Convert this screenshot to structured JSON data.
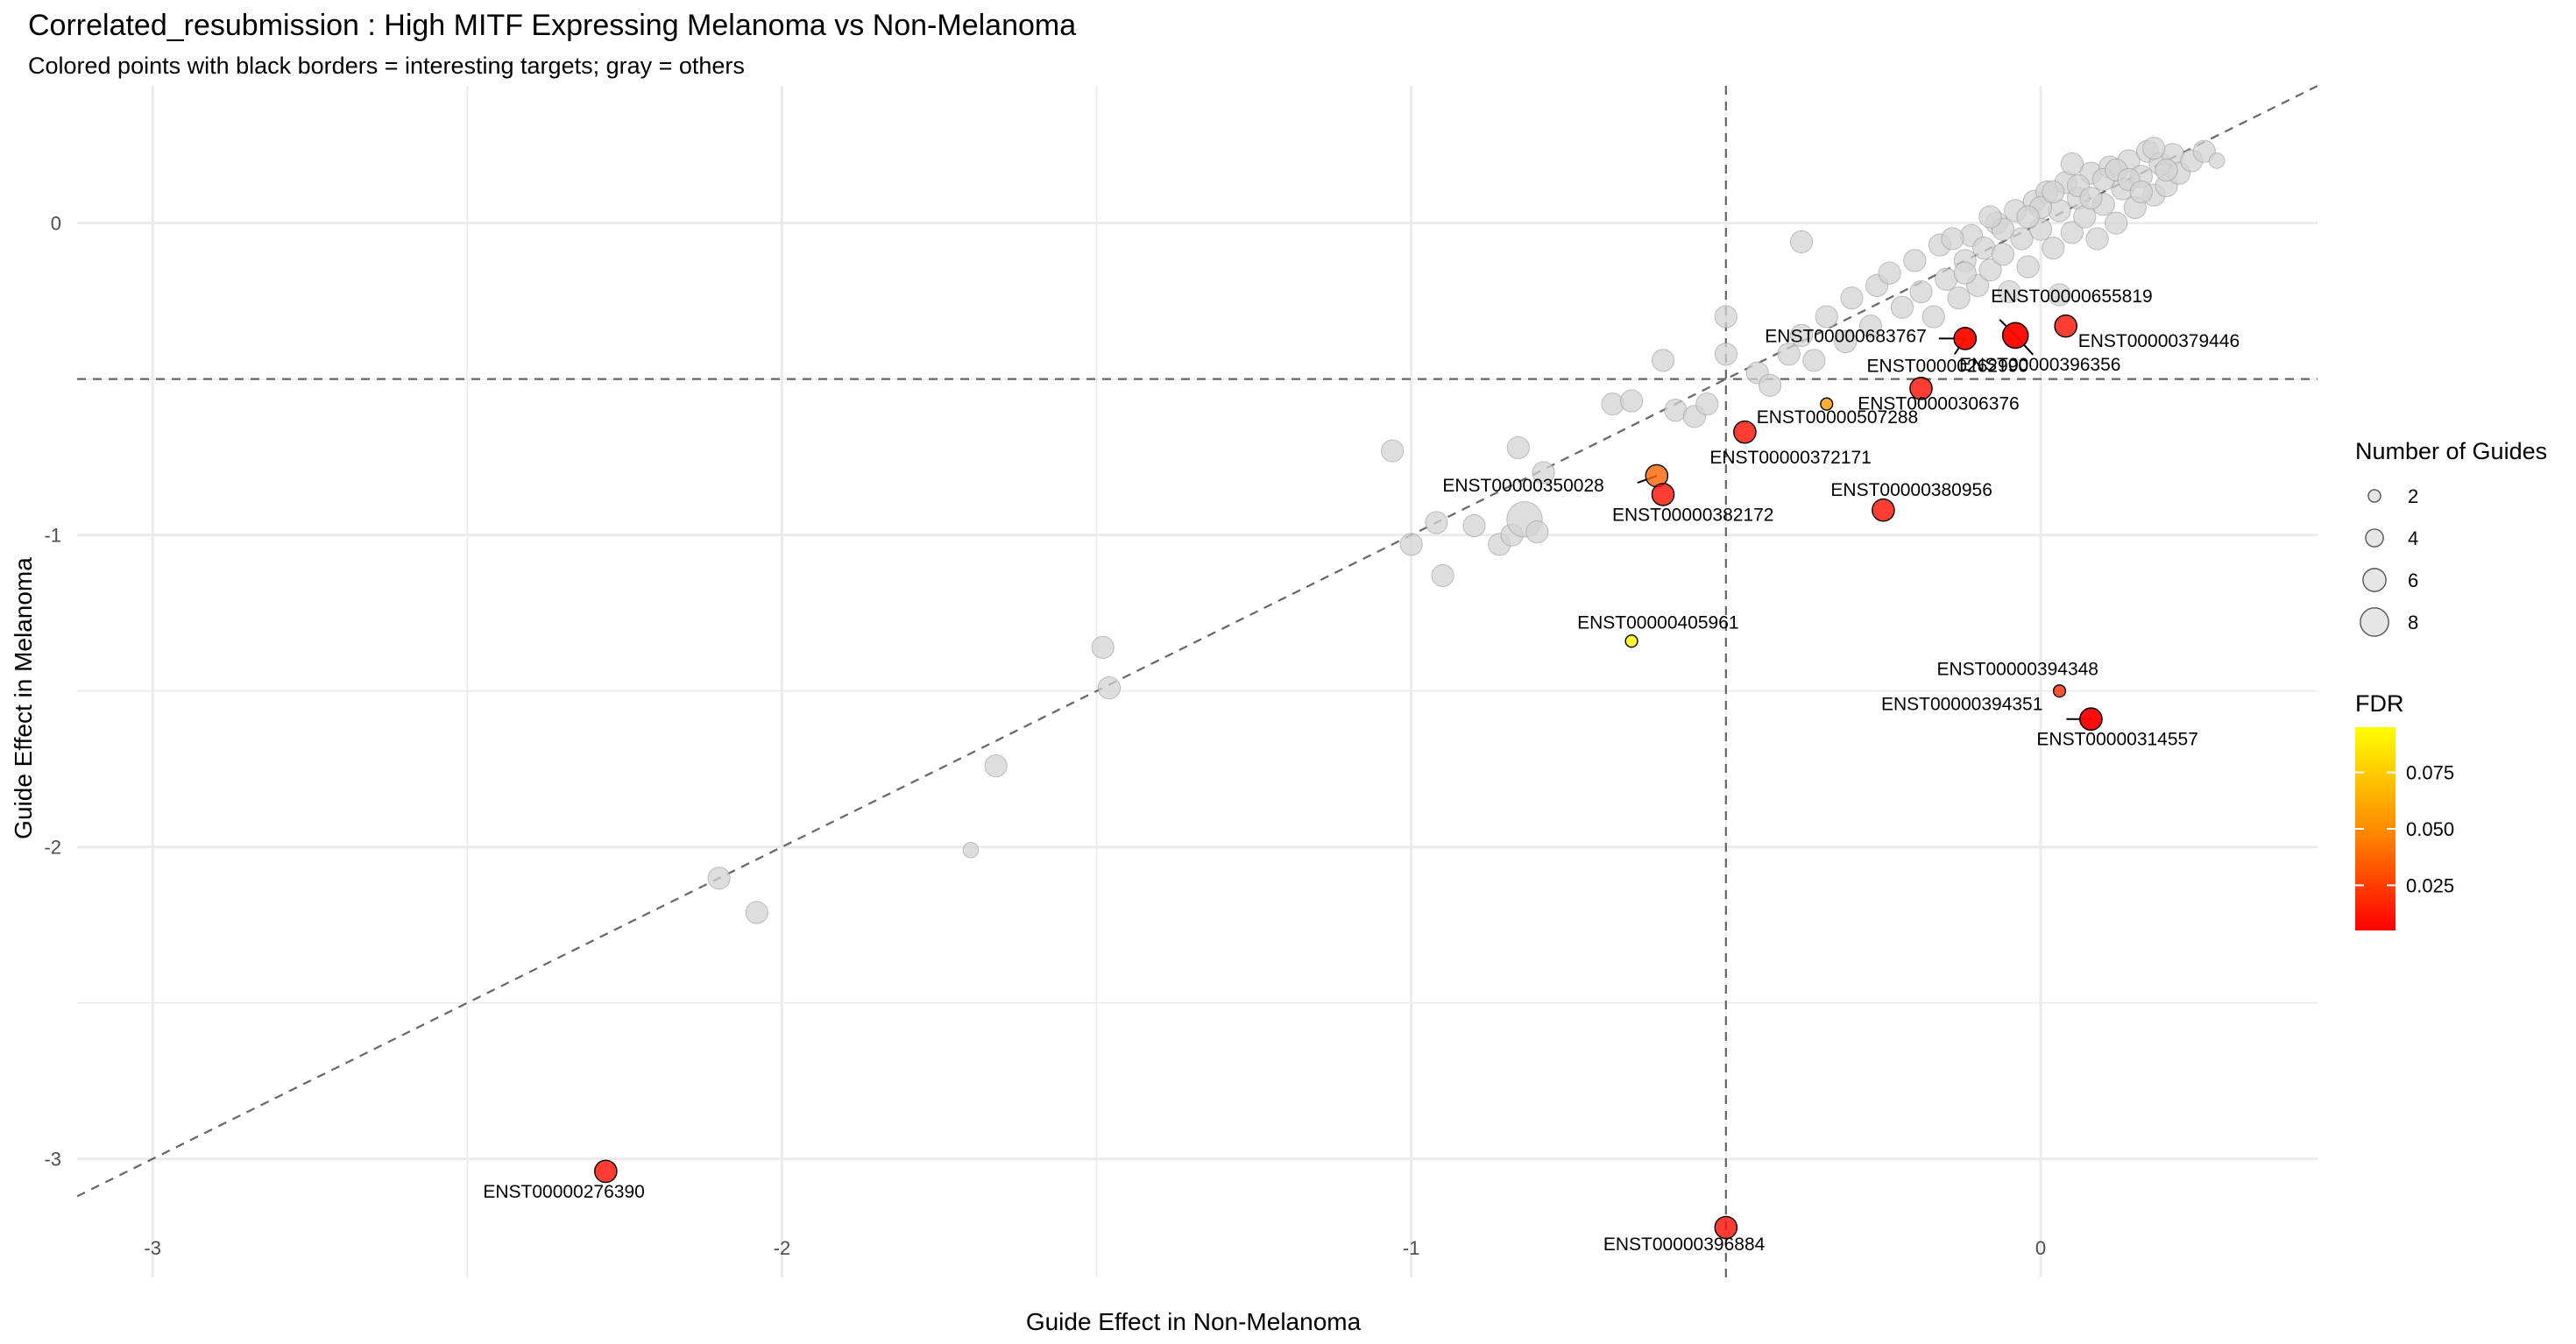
{
  "chart_data": {
    "type": "scatter",
    "title": "Correlated_resubmission : High MITF Expressing Melanoma vs Non-Melanoma",
    "subtitle": "Colored points with black borders = interesting targets; gray = others",
    "xlabel": "Guide Effect in Non-Melanoma",
    "ylabel": "Guide Effect in Melanoma",
    "xlim": [
      -3.12,
      0.44
    ],
    "ylim": [
      -3.38,
      0.44
    ],
    "x_ticks": [
      -3,
      -2,
      -1,
      0
    ],
    "y_ticks": [
      -3,
      -2,
      -1,
      0
    ],
    "grid": true,
    "reference_lines": {
      "diagonal": "y = x",
      "vertical_x": -0.5,
      "horizontal_y": -0.5
    },
    "legend_position": "right",
    "size_legend": {
      "title": "Number of Guides",
      "values": [
        2,
        4,
        6,
        8
      ],
      "labels": [
        "2",
        "4",
        "6",
        "8"
      ]
    },
    "color_legend": {
      "title": "FDR",
      "low_color": "#ff0000",
      "high_color": "#ffff00",
      "range": [
        0.005,
        0.095
      ],
      "ticks": [
        0.025,
        0.05,
        0.075
      ],
      "tick_labels": [
        "0.025",
        "0.050",
        "0.075"
      ]
    },
    "colors": {
      "other_fill": "#d3d3d3",
      "other_stroke": "#9a9a9a",
      "interesting_stroke": "#000000",
      "reference_line": "#666666",
      "grid": "#ebebeb"
    },
    "interesting_points": [
      {
        "label": "ENST00000655819",
        "x": -0.04,
        "y": -0.36,
        "guides": 5,
        "fdr": 0.005
      },
      {
        "label": "ENST00000379446",
        "x": 0.04,
        "y": -0.33,
        "guides": 4,
        "fdr": 0.01
      },
      {
        "label": "ENST00000683767",
        "x": -0.12,
        "y": -0.37,
        "guides": 4,
        "fdr": 0.01
      },
      {
        "label": "ENST00000262990",
        "x": -0.12,
        "y": -0.37,
        "guides": 4,
        "fdr": 0.01
      },
      {
        "label": "ENST00000396356",
        "x": -0.04,
        "y": -0.36,
        "guides": 5,
        "fdr": 0.008
      },
      {
        "label": "ENST00000306376",
        "x": -0.19,
        "y": -0.53,
        "guides": 4,
        "fdr": 0.01
      },
      {
        "label": "ENST00000507288",
        "x": -0.34,
        "y": -0.58,
        "guides": 1,
        "fdr": 0.06
      },
      {
        "label": "ENST00000372171",
        "x": -0.47,
        "y": -0.67,
        "guides": 4,
        "fdr": 0.01
      },
      {
        "label": "ENST00000350028",
        "x": -0.61,
        "y": -0.81,
        "guides": 4,
        "fdr": 0.04
      },
      {
        "label": "ENST00000382172",
        "x": -0.6,
        "y": -0.87,
        "guides": 4,
        "fdr": 0.01
      },
      {
        "label": "ENST00000380956",
        "x": -0.25,
        "y": -0.92,
        "guides": 4,
        "fdr": 0.01
      },
      {
        "label": "ENST00000405961",
        "x": -0.65,
        "y": -1.34,
        "guides": 1,
        "fdr": 0.09
      },
      {
        "label": "ENST00000394348",
        "x": 0.03,
        "y": -1.5,
        "guides": 1,
        "fdr": 0.02
      },
      {
        "label": "ENST00000394351",
        "x": 0.08,
        "y": -1.59,
        "guides": 4,
        "fdr": 0.008
      },
      {
        "label": "ENST00000314557",
        "x": 0.08,
        "y": -1.59,
        "guides": 4,
        "fdr": 0.005
      },
      {
        "label": "ENST00000276390",
        "x": -2.28,
        "y": -3.04,
        "guides": 4,
        "fdr": 0.01
      },
      {
        "label": "ENST00000396884",
        "x": -0.5,
        "y": -3.22,
        "guides": 4,
        "fdr": 0.01
      }
    ],
    "other_points": [
      {
        "x": -2.1,
        "y": -2.1,
        "guides": 4
      },
      {
        "x": -2.04,
        "y": -2.21,
        "guides": 4
      },
      {
        "x": -1.7,
        "y": -2.01,
        "guides": 2
      },
      {
        "x": -1.66,
        "y": -1.74,
        "guides": 4
      },
      {
        "x": -1.49,
        "y": -1.36,
        "guides": 4
      },
      {
        "x": -1.48,
        "y": -1.49,
        "guides": 4
      },
      {
        "x": -1.03,
        "y": -0.73,
        "guides": 4
      },
      {
        "x": -0.96,
        "y": -0.96,
        "guides": 4
      },
      {
        "x": -1.0,
        "y": -1.03,
        "guides": 4
      },
      {
        "x": -0.95,
        "y": -1.13,
        "guides": 4
      },
      {
        "x": -0.9,
        "y": -0.97,
        "guides": 4
      },
      {
        "x": -0.86,
        "y": -1.03,
        "guides": 4
      },
      {
        "x": -0.84,
        "y": -1.0,
        "guides": 4
      },
      {
        "x": -0.82,
        "y": -0.95,
        "guides": 8
      },
      {
        "x": -0.8,
        "y": -0.99,
        "guides": 4
      },
      {
        "x": -0.83,
        "y": -0.72,
        "guides": 4
      },
      {
        "x": -0.79,
        "y": -0.8,
        "guides": 4
      },
      {
        "x": -0.68,
        "y": -0.58,
        "guides": 4
      },
      {
        "x": -0.65,
        "y": -0.57,
        "guides": 4
      },
      {
        "x": -0.6,
        "y": -0.44,
        "guides": 4
      },
      {
        "x": -0.58,
        "y": -0.6,
        "guides": 4
      },
      {
        "x": -0.55,
        "y": -0.62,
        "guides": 4
      },
      {
        "x": -0.53,
        "y": -0.58,
        "guides": 4
      },
      {
        "x": -0.5,
        "y": -0.3,
        "guides": 4
      },
      {
        "x": -0.5,
        "y": -0.42,
        "guides": 4
      },
      {
        "x": -0.45,
        "y": -0.48,
        "guides": 4
      },
      {
        "x": -0.43,
        "y": -0.52,
        "guides": 4
      },
      {
        "x": -0.4,
        "y": -0.42,
        "guides": 4
      },
      {
        "x": -0.38,
        "y": -0.36,
        "guides": 4
      },
      {
        "x": -0.36,
        "y": -0.44,
        "guides": 4
      },
      {
        "x": -0.34,
        "y": -0.3,
        "guides": 4
      },
      {
        "x": -0.31,
        "y": -0.38,
        "guides": 4
      },
      {
        "x": -0.38,
        "y": -0.06,
        "guides": 4
      },
      {
        "x": -0.3,
        "y": -0.24,
        "guides": 4
      },
      {
        "x": -0.27,
        "y": -0.33,
        "guides": 4
      },
      {
        "x": -0.26,
        "y": -0.2,
        "guides": 4
      },
      {
        "x": -0.24,
        "y": -0.16,
        "guides": 4
      },
      {
        "x": -0.22,
        "y": -0.27,
        "guides": 4
      },
      {
        "x": -0.2,
        "y": -0.12,
        "guides": 4
      },
      {
        "x": -0.19,
        "y": -0.22,
        "guides": 4
      },
      {
        "x": -0.17,
        "y": -0.3,
        "guides": 4
      },
      {
        "x": -0.16,
        "y": -0.07,
        "guides": 4
      },
      {
        "x": -0.15,
        "y": -0.18,
        "guides": 4
      },
      {
        "x": -0.13,
        "y": -0.24,
        "guides": 4
      },
      {
        "x": -0.12,
        "y": -0.12,
        "guides": 4
      },
      {
        "x": -0.11,
        "y": -0.04,
        "guides": 4
      },
      {
        "x": -0.1,
        "y": -0.2,
        "guides": 4
      },
      {
        "x": -0.09,
        "y": -0.08,
        "guides": 4
      },
      {
        "x": -0.08,
        "y": -0.15,
        "guides": 4
      },
      {
        "x": -0.07,
        "y": 0.0,
        "guides": 4
      },
      {
        "x": -0.06,
        "y": -0.1,
        "guides": 4
      },
      {
        "x": -0.05,
        "y": -0.22,
        "guides": 4
      },
      {
        "x": -0.04,
        "y": 0.04,
        "guides": 4
      },
      {
        "x": -0.03,
        "y": -0.05,
        "guides": 4
      },
      {
        "x": -0.02,
        "y": -0.14,
        "guides": 4
      },
      {
        "x": -0.01,
        "y": 0.07,
        "guides": 4
      },
      {
        "x": 0.0,
        "y": -0.02,
        "guides": 4
      },
      {
        "x": 0.01,
        "y": 0.1,
        "guides": 4
      },
      {
        "x": 0.02,
        "y": -0.08,
        "guides": 4
      },
      {
        "x": 0.03,
        "y": 0.04,
        "guides": 4
      },
      {
        "x": 0.03,
        "y": -0.23,
        "guides": 4
      },
      {
        "x": 0.04,
        "y": 0.13,
        "guides": 4
      },
      {
        "x": 0.05,
        "y": -0.03,
        "guides": 4
      },
      {
        "x": 0.06,
        "y": 0.08,
        "guides": 4
      },
      {
        "x": 0.07,
        "y": 0.02,
        "guides": 4
      },
      {
        "x": 0.08,
        "y": 0.16,
        "guides": 4
      },
      {
        "x": 0.09,
        "y": -0.05,
        "guides": 4
      },
      {
        "x": 0.1,
        "y": 0.06,
        "guides": 4
      },
      {
        "x": 0.11,
        "y": 0.18,
        "guides": 4
      },
      {
        "x": 0.12,
        "y": 0.0,
        "guides": 4
      },
      {
        "x": 0.13,
        "y": 0.11,
        "guides": 4
      },
      {
        "x": 0.14,
        "y": 0.2,
        "guides": 4
      },
      {
        "x": 0.15,
        "y": 0.05,
        "guides": 4
      },
      {
        "x": 0.16,
        "y": 0.15,
        "guides": 4
      },
      {
        "x": 0.17,
        "y": 0.23,
        "guides": 4
      },
      {
        "x": 0.18,
        "y": 0.09,
        "guides": 4
      },
      {
        "x": 0.19,
        "y": 0.19,
        "guides": 4
      },
      {
        "x": 0.2,
        "y": 0.12,
        "guides": 4
      },
      {
        "x": 0.21,
        "y": 0.22,
        "guides": 4
      },
      {
        "x": 0.22,
        "y": 0.16,
        "guides": 4
      },
      {
        "x": 0.24,
        "y": 0.2,
        "guides": 4
      },
      {
        "x": 0.26,
        "y": 0.23,
        "guides": 4
      },
      {
        "x": 0.28,
        "y": 0.2,
        "guides": 2
      },
      {
        "x": -0.12,
        "y": -0.16,
        "guides": 4
      },
      {
        "x": -0.06,
        "y": -0.02,
        "guides": 4
      },
      {
        "x": 0.0,
        "y": 0.05,
        "guides": 4
      },
      {
        "x": 0.02,
        "y": 0.1,
        "guides": 4
      },
      {
        "x": 0.06,
        "y": 0.12,
        "guides": 4
      },
      {
        "x": 0.1,
        "y": 0.14,
        "guides": 4
      },
      {
        "x": -0.02,
        "y": 0.02,
        "guides": 4
      },
      {
        "x": 0.05,
        "y": 0.19,
        "guides": 4
      },
      {
        "x": 0.12,
        "y": 0.17,
        "guides": 4
      },
      {
        "x": 0.18,
        "y": 0.24,
        "guides": 4
      },
      {
        "x": 0.14,
        "y": 0.14,
        "guides": 4
      },
      {
        "x": -0.14,
        "y": -0.05,
        "guides": 4
      },
      {
        "x": -0.08,
        "y": 0.02,
        "guides": 4
      },
      {
        "x": 0.08,
        "y": 0.08,
        "guides": 4
      },
      {
        "x": 0.16,
        "y": 0.1,
        "guides": 4
      },
      {
        "x": 0.2,
        "y": 0.17,
        "guides": 4
      }
    ]
  }
}
